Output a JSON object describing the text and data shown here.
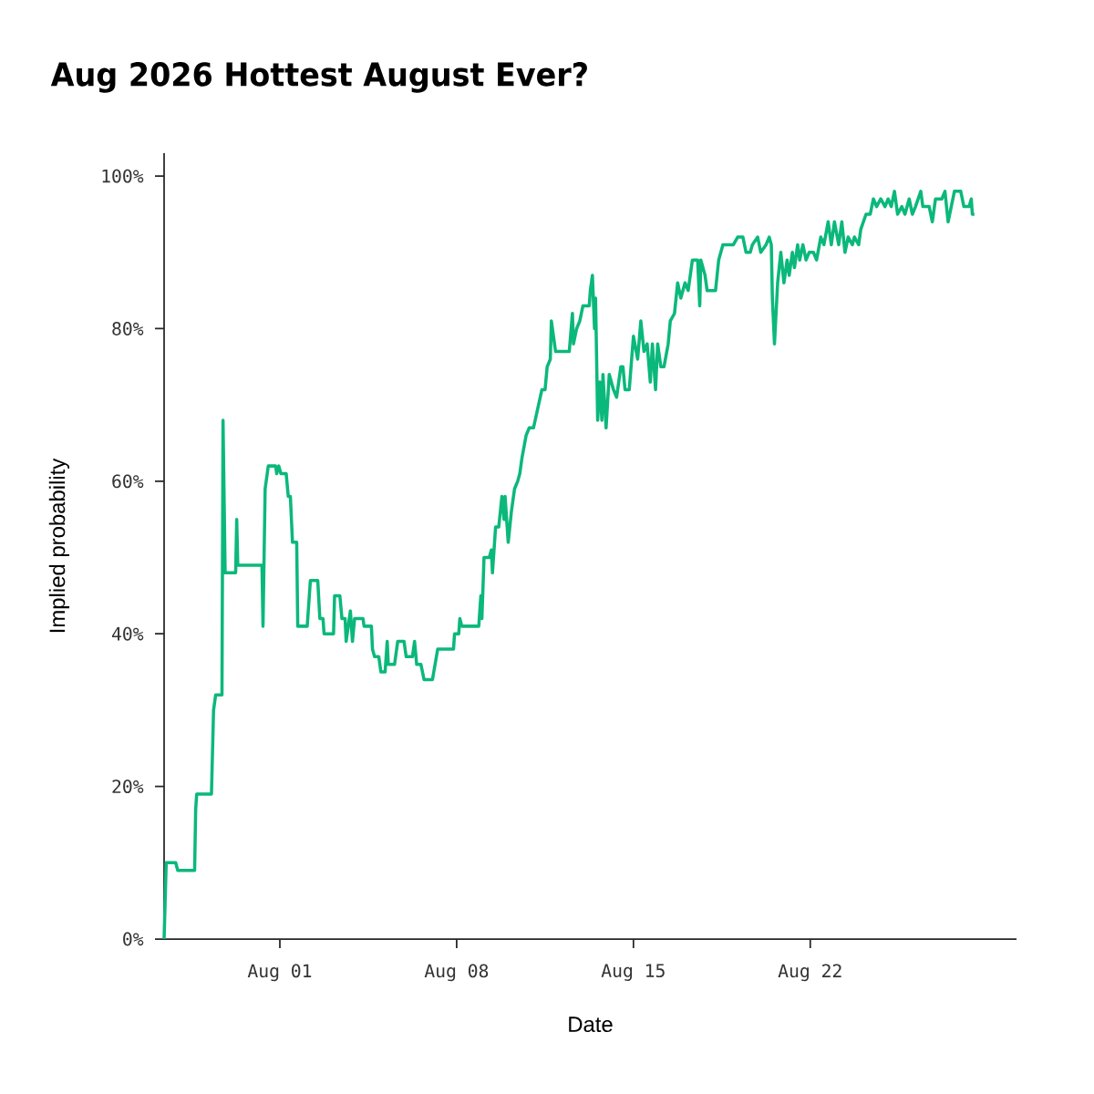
{
  "chart_data": {
    "type": "line",
    "title": "Aug 2026 Hottest August Ever?",
    "xlabel": "Date",
    "ylabel": "Implied probability",
    "xlim": [
      "2026-07-27T10:00",
      "2026-08-30T04:00"
    ],
    "xticks": [
      {
        "value": "2026-08-01",
        "label": "Aug 01"
      },
      {
        "value": "2026-08-08",
        "label": "Aug 08"
      },
      {
        "value": "2026-08-15",
        "label": "Aug 15"
      },
      {
        "value": "2026-08-22",
        "label": "Aug 22"
      }
    ],
    "ylim": [
      0,
      103
    ],
    "yticks": [
      {
        "value": 0,
        "label": "0%"
      },
      {
        "value": 20,
        "label": "20%"
      },
      {
        "value": 40,
        "label": "40%"
      },
      {
        "value": 60,
        "label": "60%"
      },
      {
        "value": 80,
        "label": "80%"
      },
      {
        "value": 100,
        "label": "100%"
      }
    ],
    "grid": false,
    "marker": "none",
    "line_style": "solid",
    "series": [
      {
        "color": "#0bb87b",
        "x": [
          "2026-07-27T10:00",
          "2026-07-27T12:00",
          "2026-07-27T21:00",
          "2026-07-27T23:00",
          "2026-07-28T15:00",
          "2026-07-28T16:00",
          "2026-07-28T17:00",
          "2026-07-29T07:00",
          "2026-07-29T09:00",
          "2026-07-29T11:00",
          "2026-07-29T17:00",
          "2026-07-29T18:00",
          "2026-07-29T20:00",
          "2026-07-30T06:00",
          "2026-07-30T07:00",
          "2026-07-30T08:00",
          "2026-07-31T07:00",
          "2026-07-31T08:00",
          "2026-07-31T10:00",
          "2026-07-31T13:00",
          "2026-07-31T20:00",
          "2026-07-31T21:00",
          "2026-07-31T23:00",
          "2026-08-01T01:00",
          "2026-08-01T06:00",
          "2026-08-01T08:00",
          "2026-08-01T10:00",
          "2026-08-01T12:00",
          "2026-08-01T16:00",
          "2026-08-01T17:00",
          "2026-08-02T02:00",
          "2026-08-02T05:00",
          "2026-08-02T12:00",
          "2026-08-02T14:00",
          "2026-08-02T17:00",
          "2026-08-02T18:00",
          "2026-08-03T03:00",
          "2026-08-03T04:00",
          "2026-08-03T09:00",
          "2026-08-03T11:00",
          "2026-08-03T14:00",
          "2026-08-03T15:00",
          "2026-08-03T18:00",
          "2026-08-03T19:00",
          "2026-08-03T21:00",
          "2026-08-03T23:00",
          "2026-08-04T07:00",
          "2026-08-04T08:00",
          "2026-08-04T15:00",
          "2026-08-04T16:00",
          "2026-08-04T18:00",
          "2026-08-04T22:00",
          "2026-08-05T00:00",
          "2026-08-05T04:00",
          "2026-08-05T06:00",
          "2026-08-05T07:00",
          "2026-08-05T13:00",
          "2026-08-05T16:00",
          "2026-08-05T22:00",
          "2026-08-06T00:00",
          "2026-08-06T06:00",
          "2026-08-06T08:00",
          "2026-08-06T10:00",
          "2026-08-06T14:00",
          "2026-08-06T17:00",
          "2026-08-07T01:00",
          "2026-08-07T06:00",
          "2026-08-07T21:00",
          "2026-08-07T22:00",
          "2026-08-08T02:00",
          "2026-08-08T03:00",
          "2026-08-08T05:00",
          "2026-08-08T21:00",
          "2026-08-08T23:00",
          "2026-08-09T00:00",
          "2026-08-09T02:00",
          "2026-08-09T07:00",
          "2026-08-09T09:00",
          "2026-08-09T10:00",
          "2026-08-09T13:00",
          "2026-08-09T16:00",
          "2026-08-09T19:00",
          "2026-08-09T21:00",
          "2026-08-09T22:00",
          "2026-08-10T01:00",
          "2026-08-10T04:00",
          "2026-08-10T07:00",
          "2026-08-10T10:00",
          "2026-08-10T12:00",
          "2026-08-10T14:00",
          "2026-08-10T18:00",
          "2026-08-10T21:00",
          "2026-08-11T01:00",
          "2026-08-11T09:00",
          "2026-08-11T12:00",
          "2026-08-11T14:00",
          "2026-08-11T17:00",
          "2026-08-11T18:00",
          "2026-08-11T22:00",
          "2026-08-12T11:00",
          "2026-08-12T14:00",
          "2026-08-12T15:00",
          "2026-08-12T18:00",
          "2026-08-12T21:00",
          "2026-08-13T00:00",
          "2026-08-13T06:00",
          "2026-08-13T07:00",
          "2026-08-13T09:00",
          "2026-08-13T11:00",
          "2026-08-13T12:00",
          "2026-08-13T14:00",
          "2026-08-13T16:00",
          "2026-08-13T18:00",
          "2026-08-13T19:00",
          "2026-08-13T22:00",
          "2026-08-14T01:00",
          "2026-08-14T03:00",
          "2026-08-14T05:00",
          "2026-08-14T08:00",
          "2026-08-14T12:00",
          "2026-08-14T14:00",
          "2026-08-14T16:00",
          "2026-08-14T20:00",
          "2026-08-15T00:00",
          "2026-08-15T04:00",
          "2026-08-15T07:00",
          "2026-08-15T10:00",
          "2026-08-15T13:00",
          "2026-08-15T16:00",
          "2026-08-15T18:00",
          "2026-08-15T21:00",
          "2026-08-15T23:00",
          "2026-08-16T02:00",
          "2026-08-16T05:00",
          "2026-08-16T09:00",
          "2026-08-16T11:00",
          "2026-08-16T15:00",
          "2026-08-16T18:00",
          "2026-08-16T21:00",
          "2026-08-17T01:00",
          "2026-08-17T04:00",
          "2026-08-17T08:00",
          "2026-08-17T13:00",
          "2026-08-17T15:00",
          "2026-08-17T16:00",
          "2026-08-17T20:00",
          "2026-08-17T22:00",
          "2026-08-18T06:00",
          "2026-08-18T09:00",
          "2026-08-18T13:00",
          "2026-08-18T23:00",
          "2026-08-19T03:00",
          "2026-08-19T08:00",
          "2026-08-19T11:00",
          "2026-08-19T15:00",
          "2026-08-19T17:00",
          "2026-08-19T22:00",
          "2026-08-20T01:00",
          "2026-08-20T06:00",
          "2026-08-20T09:00",
          "2026-08-20T11:00",
          "2026-08-20T12:00",
          "2026-08-20T14:00",
          "2026-08-20T17:00",
          "2026-08-20T20:00",
          "2026-08-20T23:00",
          "2026-08-21T02:00",
          "2026-08-21T04:00",
          "2026-08-21T07:00",
          "2026-08-21T09:00",
          "2026-08-21T12:00",
          "2026-08-21T14:00",
          "2026-08-21T17:00",
          "2026-08-21T20:00",
          "2026-08-21T23:00",
          "2026-08-22T03:00",
          "2026-08-22T06:00",
          "2026-08-22T10:00",
          "2026-08-22T13:00",
          "2026-08-22T17:00",
          "2026-08-22T20:00",
          "2026-08-22T23:00",
          "2026-08-23T03:00",
          "2026-08-23T06:00",
          "2026-08-23T09:00",
          "2026-08-23T12:00",
          "2026-08-23T16:00",
          "2026-08-23T18:00",
          "2026-08-23T22:00",
          "2026-08-24T00:00",
          "2026-08-24T05:00",
          "2026-08-24T09:00",
          "2026-08-24T12:00",
          "2026-08-24T15:00",
          "2026-08-24T19:00",
          "2026-08-24T23:00",
          "2026-08-25T02:00",
          "2026-08-25T05:00",
          "2026-08-25T08:00",
          "2026-08-25T11:00",
          "2026-08-25T15:00",
          "2026-08-25T18:00",
          "2026-08-25T22:00",
          "2026-08-26T01:00",
          "2026-08-26T04:00",
          "2026-08-26T09:00",
          "2026-08-26T11:00",
          "2026-08-26T17:00",
          "2026-08-26T20:00",
          "2026-08-26T23:00",
          "2026-08-27T05:00",
          "2026-08-27T08:00",
          "2026-08-27T11:00",
          "2026-08-27T14:00",
          "2026-08-27T17:00",
          "2026-08-27T23:00",
          "2026-08-28T02:00",
          "2026-08-28T07:00",
          "2026-08-28T09:00",
          "2026-08-28T10:00",
          "2026-08-28T12:00"
        ],
        "values": [
          0,
          10,
          10,
          9,
          9,
          17,
          19,
          19,
          30,
          32,
          32,
          68,
          48,
          48,
          55,
          49,
          49,
          41,
          59,
          62,
          62,
          61,
          62,
          61,
          61,
          58,
          58,
          52,
          52,
          41,
          41,
          47,
          47,
          42,
          42,
          40,
          40,
          45,
          45,
          42,
          42,
          39,
          42,
          43,
          39,
          42,
          42,
          41,
          41,
          38,
          37,
          37,
          35,
          35,
          39,
          36,
          36,
          39,
          39,
          37,
          37,
          39,
          36,
          36,
          34,
          34,
          38,
          38,
          40,
          40,
          42,
          41,
          41,
          45,
          42,
          50,
          50,
          51,
          48,
          54,
          54,
          58,
          55,
          58,
          52,
          56,
          59,
          60,
          61,
          63,
          66,
          67,
          67,
          72,
          72,
          75,
          76,
          81,
          77,
          77,
          82,
          78,
          80,
          81,
          83,
          83,
          85,
          87,
          80,
          84,
          68,
          73,
          68,
          74,
          67,
          74,
          73,
          72,
          71,
          75,
          75,
          72,
          72,
          79,
          76,
          81,
          77,
          78,
          73,
          78,
          72,
          78,
          75,
          75,
          78,
          81,
          82,
          86,
          84,
          86,
          85,
          89,
          89,
          83,
          89,
          87,
          85,
          85,
          89,
          91,
          91,
          92,
          92,
          90,
          90,
          91,
          92,
          90,
          91,
          92,
          91,
          84,
          78,
          86,
          90,
          86,
          89,
          87,
          90,
          88,
          91,
          89,
          91,
          89,
          90,
          90,
          89,
          92,
          91,
          94,
          91,
          94,
          91,
          94,
          90,
          92,
          91,
          92,
          91,
          93,
          95,
          95,
          97,
          96,
          97,
          96,
          97,
          96,
          98,
          95,
          96,
          95,
          97,
          95,
          96,
          98,
          96,
          96,
          94,
          97,
          97,
          98,
          94,
          96,
          98,
          98,
          96,
          96,
          97,
          95,
          95
        ]
      }
    ]
  }
}
